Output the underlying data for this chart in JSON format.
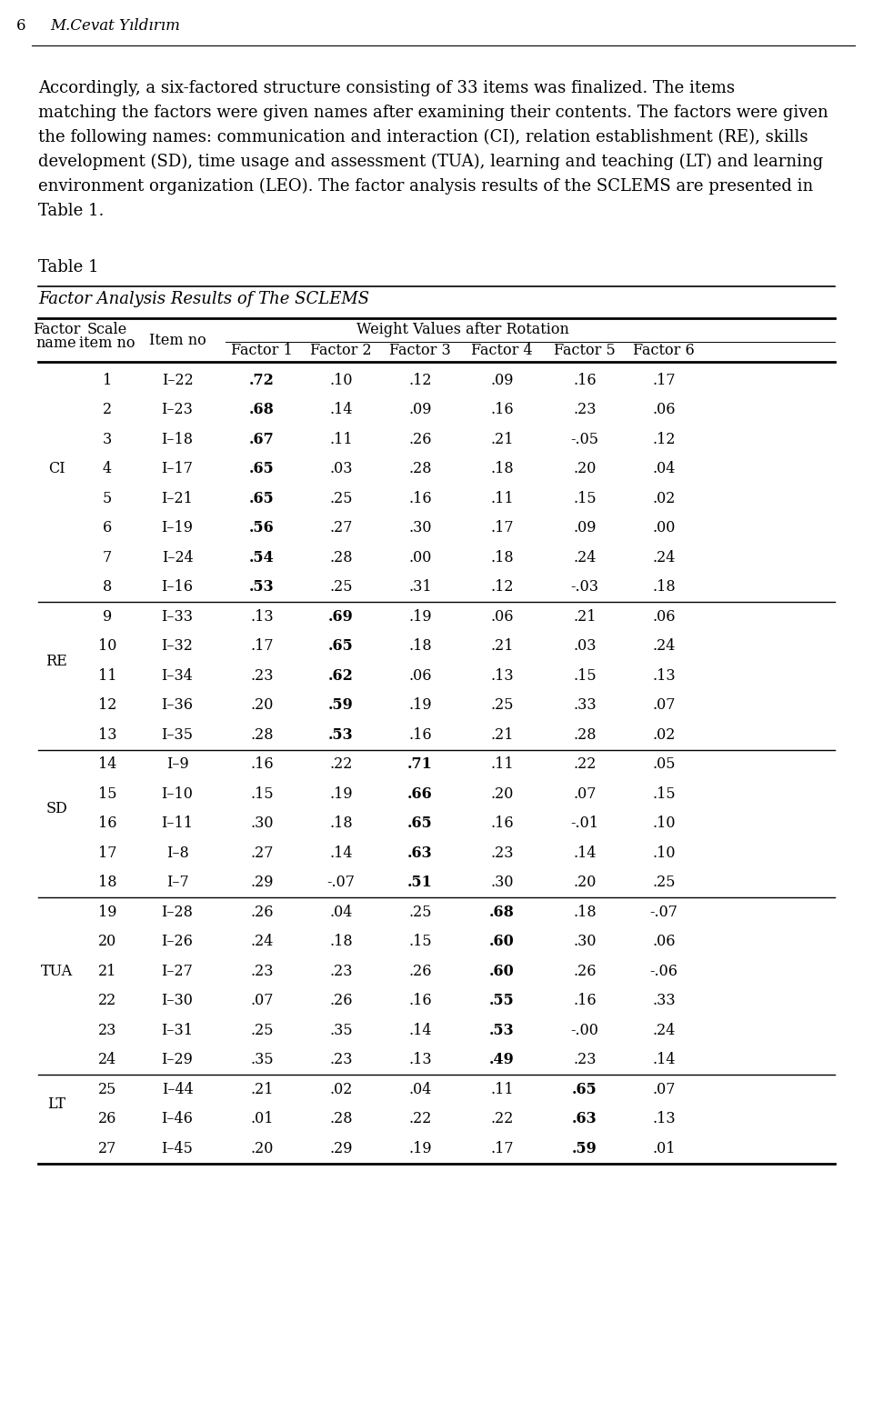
{
  "page_number": "6",
  "author": "M.Cevat Yıldırım",
  "paragraph_lines": [
    "Accordingly, a six-factored structure consisting of 33 items was finalized. The items",
    "matching the factors were given names after examining their contents. The factors were given",
    "the following names: communication and interaction (CI), relation establishment (RE), skills",
    "development (SD), time usage and assessment (TUA), learning and teaching (LT) and learning",
    "environment organization (LEO). The factor analysis results of the SCLEMS are presented in",
    "Table 1."
  ],
  "table_label": "Table 1",
  "table_title": "Factor Analysis Results of The SCLEMS",
  "factor_labels": [
    "Factor 1",
    "Factor 2",
    "Factor 3",
    "Factor 4",
    "Factor 5",
    "Factor 6"
  ],
  "rows": [
    [
      "CI",
      "1",
      "I–22",
      ".72",
      ".10",
      ".12",
      ".09",
      ".16",
      ".17"
    ],
    [
      "",
      "2",
      "I–23",
      ".68",
      ".14",
      ".09",
      ".16",
      ".23",
      ".06"
    ],
    [
      "",
      "3",
      "I–18",
      ".67",
      ".11",
      ".26",
      ".21",
      "-.05",
      ".12"
    ],
    [
      "",
      "4",
      "I–17",
      ".65",
      ".03",
      ".28",
      ".18",
      ".20",
      ".04"
    ],
    [
      "",
      "5",
      "I–21",
      ".65",
      ".25",
      ".16",
      ".11",
      ".15",
      ".02"
    ],
    [
      "",
      "6",
      "I–19",
      ".56",
      ".27",
      ".30",
      ".17",
      ".09",
      ".00"
    ],
    [
      "",
      "7",
      "I–24",
      ".54",
      ".28",
      ".00",
      ".18",
      ".24",
      ".24"
    ],
    [
      "",
      "8",
      "I–16",
      ".53",
      ".25",
      ".31",
      ".12",
      "-.03",
      ".18"
    ],
    [
      "RE",
      "9",
      "I–33",
      ".13",
      ".69",
      ".19",
      ".06",
      ".21",
      ".06"
    ],
    [
      "",
      "10",
      "I–32",
      ".17",
      ".65",
      ".18",
      ".21",
      ".03",
      ".24"
    ],
    [
      "",
      "11",
      "I–34",
      ".23",
      ".62",
      ".06",
      ".13",
      ".15",
      ".13"
    ],
    [
      "",
      "12",
      "I–36",
      ".20",
      ".59",
      ".19",
      ".25",
      ".33",
      ".07"
    ],
    [
      "",
      "13",
      "I–35",
      ".28",
      ".53",
      ".16",
      ".21",
      ".28",
      ".02"
    ],
    [
      "SD",
      "14",
      "I–9",
      ".16",
      ".22",
      ".71",
      ".11",
      ".22",
      ".05"
    ],
    [
      "",
      "15",
      "I–10",
      ".15",
      ".19",
      ".66",
      ".20",
      ".07",
      ".15"
    ],
    [
      "",
      "16",
      "I–11",
      ".30",
      ".18",
      ".65",
      ".16",
      "-.01",
      ".10"
    ],
    [
      "",
      "17",
      "I–8",
      ".27",
      ".14",
      ".63",
      ".23",
      ".14",
      ".10"
    ],
    [
      "",
      "18",
      "I–7",
      ".29",
      "-.07",
      ".51",
      ".30",
      ".20",
      ".25"
    ],
    [
      "TUA",
      "19",
      "I–28",
      ".26",
      ".04",
      ".25",
      ".68",
      ".18",
      "-.07"
    ],
    [
      "",
      "20",
      "I–26",
      ".24",
      ".18",
      ".15",
      ".60",
      ".30",
      ".06"
    ],
    [
      "",
      "21",
      "I–27",
      ".23",
      ".23",
      ".26",
      ".60",
      ".26",
      "-.06"
    ],
    [
      "",
      "22",
      "I–30",
      ".07",
      ".26",
      ".16",
      ".55",
      ".16",
      ".33"
    ],
    [
      "",
      "23",
      "I–31",
      ".25",
      ".35",
      ".14",
      ".53",
      "-.00",
      ".24"
    ],
    [
      "",
      "24",
      "I–29",
      ".35",
      ".23",
      ".13",
      ".49",
      ".23",
      ".14"
    ],
    [
      "LT",
      "25",
      "I–44",
      ".21",
      ".02",
      ".04",
      ".11",
      ".65",
      ".07"
    ],
    [
      "",
      "26",
      "I–46",
      ".01",
      ".28",
      ".22",
      ".22",
      ".63",
      ".13"
    ],
    [
      "",
      "27",
      "I–45",
      ".20",
      ".29",
      ".19",
      ".17",
      ".59",
      ".01"
    ]
  ],
  "factor_bold_col": {
    "CI": 3,
    "RE": 4,
    "SD": 5,
    "TUA": 6,
    "LT": 7
  },
  "separator_after_rows": [
    7,
    12,
    17,
    23
  ],
  "factor_group_midrow": {
    "CI": 3.5,
    "RE": 10.0,
    "SD": 15.0,
    "TUA": 20.5,
    "LT": 25.0
  },
  "bg_color": "#ffffff",
  "text_color": "#000000",
  "header_fontsize": 11.5,
  "body_fontsize": 11.5,
  "title_fontsize": 13,
  "para_fontsize": 13
}
